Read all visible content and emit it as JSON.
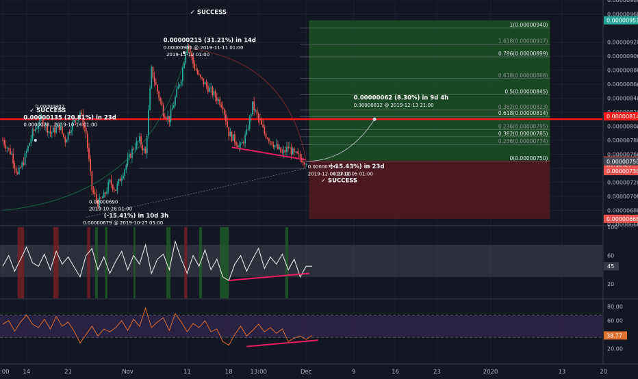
{
  "theme": {
    "background": "#131722",
    "grid": "#1e2230",
    "axis_text": "#b2b5be",
    "candle_up": "#26a69a",
    "candle_down": "#ef5350",
    "divergence_line": "#e91e63",
    "resistance_line": "#ff1a1a",
    "long_zone": "#1e5a24",
    "short_zone": "#5c1a22",
    "rsi_line": "#e6e6e6",
    "rsi_band": "#434651",
    "osc_line": "#e07030",
    "osc_band": "#3b2a58"
  },
  "chart_data": [
    {
      "type": "candlestick",
      "panel": "price",
      "ylim": [
        6.6e-06,
        9.8e-06
      ],
      "price_ticks": [
        "0.00000980",
        "0.00000960",
        "0.00000920",
        "0.00000900",
        "0.00000880",
        "0.00000860",
        "0.00000840",
        "0.00000820",
        "0.00000800",
        "0.00000780",
        "0.00000760",
        "0.00000740",
        "0.00000720",
        "0.00000700",
        "0.00000680",
        "0.00000660"
      ],
      "price_tick_values": [
        9.8e-06,
        9.6e-06,
        9.2e-06,
        9e-06,
        8.8e-06,
        8.6e-06,
        8.4e-06,
        8.2e-06,
        8e-06,
        7.8e-06,
        7.6e-06,
        7.4e-06,
        7.2e-06,
        7e-06,
        6.8e-06,
        6.6e-06
      ],
      "date_ticks": [
        {
          "label": "0:00",
          "day": 0
        },
        {
          "label": "14",
          "day": 4
        },
        {
          "label": "21",
          "day": 11
        },
        {
          "label": "Nov",
          "day": 21
        },
        {
          "label": "11",
          "day": 31
        },
        {
          "label": "18",
          "day": 38
        },
        {
          "label": "13:00",
          "day": 43
        },
        {
          "label": "Dec",
          "day": 51
        },
        {
          "label": "9",
          "day": 59
        },
        {
          "label": "16",
          "day": 66
        },
        {
          "label": "23",
          "day": 73
        },
        {
          "label": "2020",
          "day": 82
        },
        {
          "label": "13",
          "day": 94
        },
        {
          "label": "20",
          "day": 101
        }
      ],
      "close_series": [
        {
          "day": 0,
          "close": 7.8e-06
        },
        {
          "day": 1.5,
          "close": 7.6e-06
        },
        {
          "day": 2.5,
          "close": 7.3e-06
        },
        {
          "day": 3.5,
          "close": 7.5e-06
        },
        {
          "day": 5,
          "close": 7.9e-06
        },
        {
          "day": 6.5,
          "close": 8.1e-06
        },
        {
          "day": 8,
          "close": 7.9e-06
        },
        {
          "day": 9.5,
          "close": 8e-06
        },
        {
          "day": 10.5,
          "close": 7.8e-06
        },
        {
          "day": 11.5,
          "close": 8e-06
        },
        {
          "day": 13,
          "close": 8.2e-06
        },
        {
          "day": 14,
          "close": 7.9e-06
        },
        {
          "day": 15,
          "close": 7.1e-06
        },
        {
          "day": 16,
          "close": 6.9e-06
        },
        {
          "day": 17,
          "close": 7e-06
        },
        {
          "day": 18,
          "close": 7.2e-06
        },
        {
          "day": 19,
          "close": 7.1e-06
        },
        {
          "day": 20,
          "close": 7.3e-06
        },
        {
          "day": 21,
          "close": 7.5e-06
        },
        {
          "day": 22,
          "close": 7.7e-06
        },
        {
          "day": 23,
          "close": 7.8e-06
        },
        {
          "day": 24,
          "close": 7.6e-06
        },
        {
          "day": 25,
          "close": 8.8e-06
        },
        {
          "day": 26,
          "close": 8.5e-06
        },
        {
          "day": 27,
          "close": 8.2e-06
        },
        {
          "day": 28,
          "close": 8.1e-06
        },
        {
          "day": 29,
          "close": 8.4e-06
        },
        {
          "day": 30,
          "close": 8.7e-06
        },
        {
          "day": 31,
          "close": 9.2e-06
        },
        {
          "day": 32,
          "close": 8.9e-06
        },
        {
          "day": 33,
          "close": 8.7e-06
        },
        {
          "day": 34,
          "close": 8.6e-06
        },
        {
          "day": 35,
          "close": 8.5e-06
        },
        {
          "day": 36,
          "close": 8.4e-06
        },
        {
          "day": 37,
          "close": 8.3e-06
        },
        {
          "day": 38,
          "close": 7.9e-06
        },
        {
          "day": 39,
          "close": 7.8e-06
        },
        {
          "day": 40,
          "close": 7.7e-06
        },
        {
          "day": 41,
          "close": 7.9e-06
        },
        {
          "day": 42,
          "close": 8.3e-06
        },
        {
          "day": 43,
          "close": 8.1e-06
        },
        {
          "day": 44,
          "close": 7.9e-06
        },
        {
          "day": 45,
          "close": 7.8e-06
        },
        {
          "day": 46,
          "close": 7.7e-06
        },
        {
          "day": 47,
          "close": 7.6e-06
        },
        {
          "day": 48,
          "close": 7.7e-06
        },
        {
          "day": 49,
          "close": 7.6e-06
        },
        {
          "day": 50,
          "close": 7.55e-06
        },
        {
          "day": 51,
          "close": 7.5e-06
        }
      ],
      "resistance_price": 8.1e-06,
      "fib": {
        "labels": [
          "1(0.00000940)",
          "1.618(0.00000917)",
          "0.786(0.00000899)",
          "0.618(0.00000868)",
          "0.5(0.00000845)",
          "0.382(0.00000823)",
          "0.618(0.00000814)",
          "0.236(0.00000795)",
          "0.382(0.00000785)",
          "0.236(0.00000774)",
          "0(0.00000750)"
        ],
        "values": [
          9.4e-06,
          9.17e-06,
          8.99e-06,
          8.68e-06,
          8.45e-06,
          8.23e-06,
          8.14e-06,
          7.95e-06,
          7.85e-06,
          7.74e-06,
          7.5e-06
        ]
      },
      "price_badges": [
        {
          "label": "0.00000951",
          "value": 9.51e-06,
          "color": "#26a69a"
        },
        {
          "label": "0.00000814",
          "value": 8.14e-06,
          "color": "#ff1a1a"
        },
        {
          "label": "0.00000751",
          "value": 7.51e-06,
          "color": "#ef5350"
        },
        {
          "label": "01:35:57",
          "value": 7.425e-06,
          "color": "#ef5350"
        },
        {
          "label": "0.00000750",
          "value": 7.5e-06,
          "color": "#434651"
        },
        {
          "label": "0.00000736",
          "value": 7.36e-06,
          "color": "#ef5350"
        },
        {
          "label": "0.00000668",
          "value": 6.68e-06,
          "color": "#ef5350"
        }
      ],
      "annotations": [
        {
          "text": "✓ SUCCESS",
          "day": 31.5,
          "price": 9.6e-06
        },
        {
          "text": "0.00000215 (31.21%) in 14d",
          "day": 27,
          "price": 9.2e-06
        },
        {
          "text": "0.00000906 @ 2019-11-11 01:00",
          "day": 27,
          "price": 9.1e-06
        },
        {
          "text": "2019-11-12 01:00",
          "day": 27.5,
          "price": 9e-06
        },
        {
          "text": "0.00000802",
          "day": 5.5,
          "price": 8.26e-06
        },
        {
          "text": "✓ SUCCESS",
          "day": 4.5,
          "price": 8.2e-06
        },
        {
          "text": "0.00000135 (20.81%) in 23d",
          "day": 3.5,
          "price": 8.1e-06
        },
        {
          "text": "0.0000078...2019-10-14 01:00",
          "day": 3.5,
          "price": 8e-06
        },
        {
          "text": "0.00000690",
          "day": 14.5,
          "price": 6.9e-06
        },
        {
          "text": "2019-10-28 01:00",
          "day": 14.5,
          "price": 6.8e-06
        },
        {
          "text": "(-15.41%) in 10d 3h",
          "day": 17,
          "price": 6.7e-06
        },
        {
          "text": "0.00000679 @ 2019-10-27 05:00",
          "day": 13.5,
          "price": 6.6e-06
        },
        {
          "text": "0.00000062 (8.30%) in 9d 4h",
          "day": 59,
          "price": 8.38e-06
        },
        {
          "text": "0.00000812 @ 2019-12-13 21:00",
          "day": 59,
          "price": 8.28e-06
        },
        {
          "text": "0.00000750",
          "day": 51.3,
          "price": 7.4e-06
        },
        {
          "text": "(-15.43%) in 23d",
          "day": 55,
          "price": 7.4e-06
        },
        {
          "text": "2019-12-04 17:00",
          "day": 51.3,
          "price": 7.3e-06
        },
        {
          "text": "019-12-05 01:00",
          "day": 55.5,
          "price": 7.3e-06
        },
        {
          "text": "✓ SUCCESS",
          "day": 53.5,
          "price": 7.2e-06
        }
      ]
    },
    {
      "type": "line",
      "panel": "rsi",
      "ylim": [
        0,
        100
      ],
      "ticks": [
        "100",
        "60",
        "20"
      ],
      "tick_values": [
        100,
        60,
        20
      ],
      "band": [
        30,
        75
      ],
      "current_label": "45",
      "current": 45,
      "x": [
        0,
        1,
        2,
        3,
        4,
        5,
        6,
        7,
        8,
        9,
        10,
        11,
        12,
        13,
        14,
        15,
        16,
        17,
        18,
        19,
        20,
        21,
        22,
        23,
        24,
        25,
        26,
        27,
        28,
        29,
        30,
        31,
        32,
        33,
        34,
        35,
        36,
        37,
        38,
        39,
        40,
        41,
        42,
        43,
        44,
        45,
        46,
        47,
        48,
        49,
        50,
        51,
        52
      ],
      "values": [
        45,
        60,
        38,
        55,
        72,
        50,
        45,
        62,
        40,
        66,
        48,
        58,
        44,
        30,
        60,
        70,
        40,
        58,
        35,
        52,
        66,
        40,
        60,
        48,
        75,
        35,
        55,
        62,
        40,
        80,
        55,
        35,
        60,
        45,
        68,
        40,
        55,
        30,
        25,
        48,
        60,
        38,
        55,
        70,
        42,
        58,
        48,
        62,
        40,
        55,
        30,
        45,
        45
      ]
    },
    {
      "type": "line",
      "panel": "oscillator",
      "ylim": [
        0,
        90
      ],
      "ticks": [
        "80.00",
        "60.00",
        "40.00",
        "20.00"
      ],
      "tick_values": [
        80,
        60,
        40,
        20
      ],
      "band": [
        36,
        68
      ],
      "current_label": "38.77",
      "current": 38.77,
      "x": [
        0,
        1,
        2,
        3,
        4,
        5,
        6,
        7,
        8,
        9,
        10,
        11,
        12,
        13,
        14,
        15,
        16,
        17,
        18,
        19,
        20,
        21,
        22,
        23,
        24,
        25,
        26,
        27,
        28,
        29,
        30,
        31,
        32,
        33,
        34,
        35,
        36,
        37,
        38,
        39,
        40,
        41,
        42,
        43,
        44,
        45,
        46,
        47,
        48,
        49,
        50,
        51,
        52
      ],
      "values": [
        55,
        60,
        45,
        58,
        68,
        55,
        50,
        62,
        48,
        66,
        52,
        58,
        45,
        28,
        40,
        52,
        38,
        48,
        44,
        50,
        60,
        46,
        62,
        52,
        78,
        50,
        58,
        64,
        46,
        70,
        58,
        44,
        56,
        50,
        60,
        44,
        48,
        30,
        25,
        40,
        52,
        38,
        46,
        55,
        44,
        50,
        42,
        48,
        30,
        35,
        38,
        33,
        38.77
      ]
    }
  ]
}
